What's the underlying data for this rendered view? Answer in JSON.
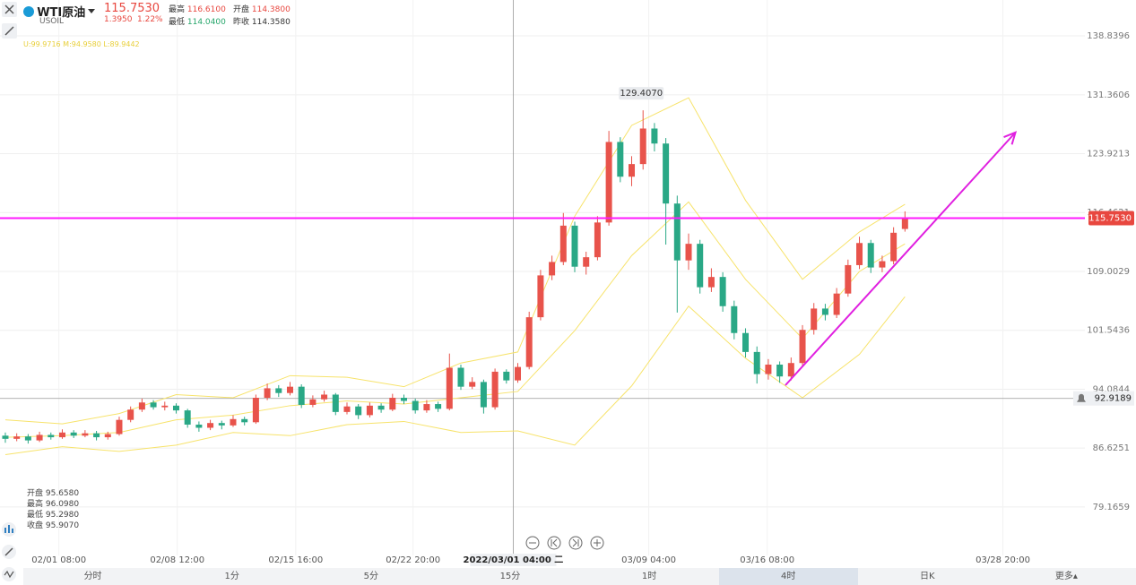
{
  "header": {
    "symbol": "WTI原油",
    "code": "USOIL",
    "price": "115.7530",
    "change": "1.3950",
    "change_pct": "1.22%",
    "stats": [
      {
        "label": "最高",
        "value": "116.6100"
      },
      {
        "label": "开盘",
        "value": "114.3800"
      },
      {
        "label": "最低",
        "value": "114.0400"
      },
      {
        "label": "昨收",
        "value": "114.3580"
      }
    ]
  },
  "indicator": "U:99.9716  M:94.9580  L:89.9442",
  "ohlc_info": [
    {
      "label": "开盘",
      "value": "95.6580"
    },
    {
      "label": "最高",
      "value": "96.0980"
    },
    {
      "label": "最低",
      "value": "95.2980"
    },
    {
      "label": "收盘",
      "value": "95.9070"
    }
  ],
  "tabs": [
    "分时",
    "1分",
    "5分",
    "15分",
    "1时",
    "4时",
    "日K",
    "更多▴"
  ],
  "chart_data": {
    "type": "candlestick",
    "up_color": "#e8534b",
    "down_color": "#2aa886",
    "candles": [
      [
        88.2,
        88.6,
        87.3,
        87.8
      ],
      [
        87.8,
        88.5,
        87.5,
        88.1
      ],
      [
        88.1,
        88.4,
        87.2,
        87.6
      ],
      [
        87.6,
        88.7,
        87.4,
        88.3
      ],
      [
        88.3,
        88.6,
        87.7,
        88.0
      ],
      [
        88.0,
        89.0,
        87.8,
        88.6
      ],
      [
        88.6,
        88.9,
        87.9,
        88.2
      ],
      [
        88.2,
        88.9,
        88.0,
        88.5
      ],
      [
        88.5,
        88.8,
        87.6,
        88.0
      ],
      [
        88.0,
        88.7,
        87.7,
        88.4
      ],
      [
        88.4,
        90.6,
        88.2,
        90.2
      ],
      [
        90.2,
        91.9,
        89.9,
        91.5
      ],
      [
        91.5,
        92.9,
        91.2,
        92.4
      ],
      [
        92.4,
        92.7,
        91.5,
        91.8
      ],
      [
        91.8,
        92.5,
        91.4,
        92.0
      ],
      [
        92.0,
        92.3,
        91.0,
        91.4
      ],
      [
        91.4,
        91.6,
        89.2,
        89.6
      ],
      [
        89.6,
        90.0,
        88.7,
        89.2
      ],
      [
        89.2,
        90.2,
        88.9,
        89.8
      ],
      [
        89.8,
        90.1,
        89.0,
        89.5
      ],
      [
        89.5,
        90.8,
        89.3,
        90.3
      ],
      [
        90.3,
        90.6,
        89.5,
        89.9
      ],
      [
        89.9,
        93.4,
        89.7,
        93.0
      ],
      [
        93.0,
        94.8,
        92.7,
        94.2
      ],
      [
        94.2,
        94.6,
        93.1,
        93.6
      ],
      [
        93.6,
        95.0,
        93.3,
        94.4
      ],
      [
        94.4,
        94.7,
        91.7,
        92.1
      ],
      [
        92.1,
        93.3,
        91.8,
        92.8
      ],
      [
        92.8,
        93.9,
        92.5,
        93.4
      ],
      [
        93.4,
        93.6,
        90.8,
        91.2
      ],
      [
        91.2,
        92.4,
        90.9,
        91.9
      ],
      [
        91.9,
        92.2,
        90.3,
        90.8
      ],
      [
        90.8,
        92.4,
        90.5,
        92.0
      ],
      [
        92.0,
        92.3,
        91.1,
        91.5
      ],
      [
        91.5,
        93.5,
        91.3,
        93.0
      ],
      [
        93.0,
        93.4,
        92.2,
        92.6
      ],
      [
        92.6,
        92.9,
        91.0,
        91.4
      ],
      [
        91.4,
        92.7,
        91.1,
        92.2
      ],
      [
        92.2,
        92.5,
        91.2,
        91.6
      ],
      [
        91.6,
        98.6,
        91.4,
        96.8
      ],
      [
        96.8,
        97.2,
        94.0,
        94.4
      ],
      [
        94.4,
        95.6,
        94.1,
        95.0
      ],
      [
        95.0,
        95.3,
        91.0,
        91.8
      ],
      [
        91.8,
        96.7,
        91.5,
        96.3
      ],
      [
        96.3,
        96.6,
        94.8,
        95.2
      ],
      [
        95.2,
        97.4,
        94.9,
        96.9
      ],
      [
        96.9,
        103.9,
        96.6,
        103.2
      ],
      [
        103.2,
        109.2,
        102.8,
        108.5
      ],
      [
        108.5,
        111.0,
        107.9,
        110.2
      ],
      [
        110.2,
        116.4,
        109.8,
        114.8
      ],
      [
        114.8,
        115.3,
        108.9,
        109.6
      ],
      [
        109.6,
        111.5,
        108.6,
        110.8
      ],
      [
        110.8,
        116.0,
        110.4,
        115.2
      ],
      [
        115.2,
        126.8,
        114.8,
        125.4
      ],
      [
        125.4,
        126.0,
        120.3,
        121.0
      ],
      [
        121.0,
        123.6,
        119.8,
        122.6
      ],
      [
        122.6,
        129.407,
        121.9,
        127.1
      ],
      [
        127.1,
        127.8,
        124.2,
        125.2
      ],
      [
        125.2,
        125.9,
        112.4,
        117.6
      ],
      [
        117.6,
        118.6,
        103.8,
        110.4
      ],
      [
        110.4,
        113.8,
        109.2,
        112.5
      ],
      [
        112.5,
        113.0,
        106.2,
        107.0
      ],
      [
        107.0,
        109.4,
        106.4,
        108.3
      ],
      [
        108.3,
        108.9,
        103.9,
        104.6
      ],
      [
        104.6,
        105.3,
        100.4,
        101.2
      ],
      [
        101.2,
        101.8,
        98.1,
        98.8
      ],
      [
        98.8,
        99.5,
        94.8,
        96.0
      ],
      [
        96.0,
        97.9,
        95.3,
        97.2
      ],
      [
        97.2,
        97.6,
        94.9,
        95.7
      ],
      [
        95.7,
        98.1,
        95.2,
        97.4
      ],
      [
        97.4,
        102.2,
        97.0,
        101.6
      ],
      [
        101.6,
        105.0,
        101.0,
        104.3
      ],
      [
        104.3,
        104.9,
        102.8,
        103.5
      ],
      [
        103.5,
        106.9,
        103.1,
        106.2
      ],
      [
        106.2,
        110.5,
        105.8,
        109.8
      ],
      [
        109.8,
        113.4,
        109.3,
        112.6
      ],
      [
        112.6,
        113.0,
        108.8,
        109.5
      ],
      [
        109.5,
        111.0,
        108.9,
        110.3
      ],
      [
        110.3,
        114.6,
        109.9,
        113.9
      ],
      [
        114.38,
        116.61,
        114.04,
        115.753
      ]
    ],
    "bands": {
      "color": "#f7e36b",
      "x": [
        0,
        5,
        10,
        15,
        20,
        25,
        30,
        35,
        40,
        45,
        50,
        55,
        60,
        65,
        70,
        75,
        79
      ],
      "upper": [
        90.2,
        89.7,
        91.0,
        93.4,
        93.0,
        95.8,
        95.6,
        94.4,
        97.4,
        98.8,
        116.0,
        127.5,
        131.0,
        118.0,
        108.0,
        114.0,
        117.5
      ],
      "middle": [
        88.0,
        88.2,
        88.6,
        90.2,
        90.8,
        92.0,
        92.6,
        92.2,
        93.0,
        93.8,
        101.5,
        111.0,
        117.8,
        108.0,
        100.5,
        109.0,
        112.5
      ],
      "lower": [
        85.8,
        86.8,
        86.2,
        87.0,
        88.6,
        88.2,
        89.6,
        90.0,
        88.6,
        88.8,
        87.0,
        94.5,
        104.6,
        98.0,
        93.0,
        98.5,
        105.8
      ]
    },
    "xlim": [
      -0.47,
      94.8
    ],
    "ylim": [
      73.03,
      143.38
    ],
    "yticks": [
      138.8396,
      131.3606,
      123.9213,
      116.4621,
      109.0029,
      101.5436,
      94.0844,
      86.6251,
      79.1659
    ],
    "xticks": [
      {
        "value": 4.7,
        "label": "02/01 08:00"
      },
      {
        "value": 15.1,
        "label": "02/08 12:00"
      },
      {
        "value": 25.5,
        "label": "02/15 16:00"
      },
      {
        "value": 35.8,
        "label": "02/22 20:00"
      },
      {
        "value": 56.5,
        "label": "03/09 04:00"
      },
      {
        "value": 66.9,
        "label": "03/16 08:00"
      },
      {
        "value": 87.6,
        "label": "03/28 20:00"
      }
    ],
    "crosshair": {
      "x": 44.6,
      "label": "2022/03/01 04:00 二"
    },
    "max_label": {
      "x": 56,
      "value": 129.407,
      "label": "129.4070"
    },
    "last_price": {
      "value": 115.753,
      "label": "115.7530",
      "color": "#ff1aff"
    },
    "alert": {
      "value": 92.9189,
      "label": "92.9189"
    },
    "trend": {
      "color": "#e020e0",
      "x": [
        68.5,
        88.7
      ],
      "y": [
        94.59,
        126.6
      ]
    }
  }
}
